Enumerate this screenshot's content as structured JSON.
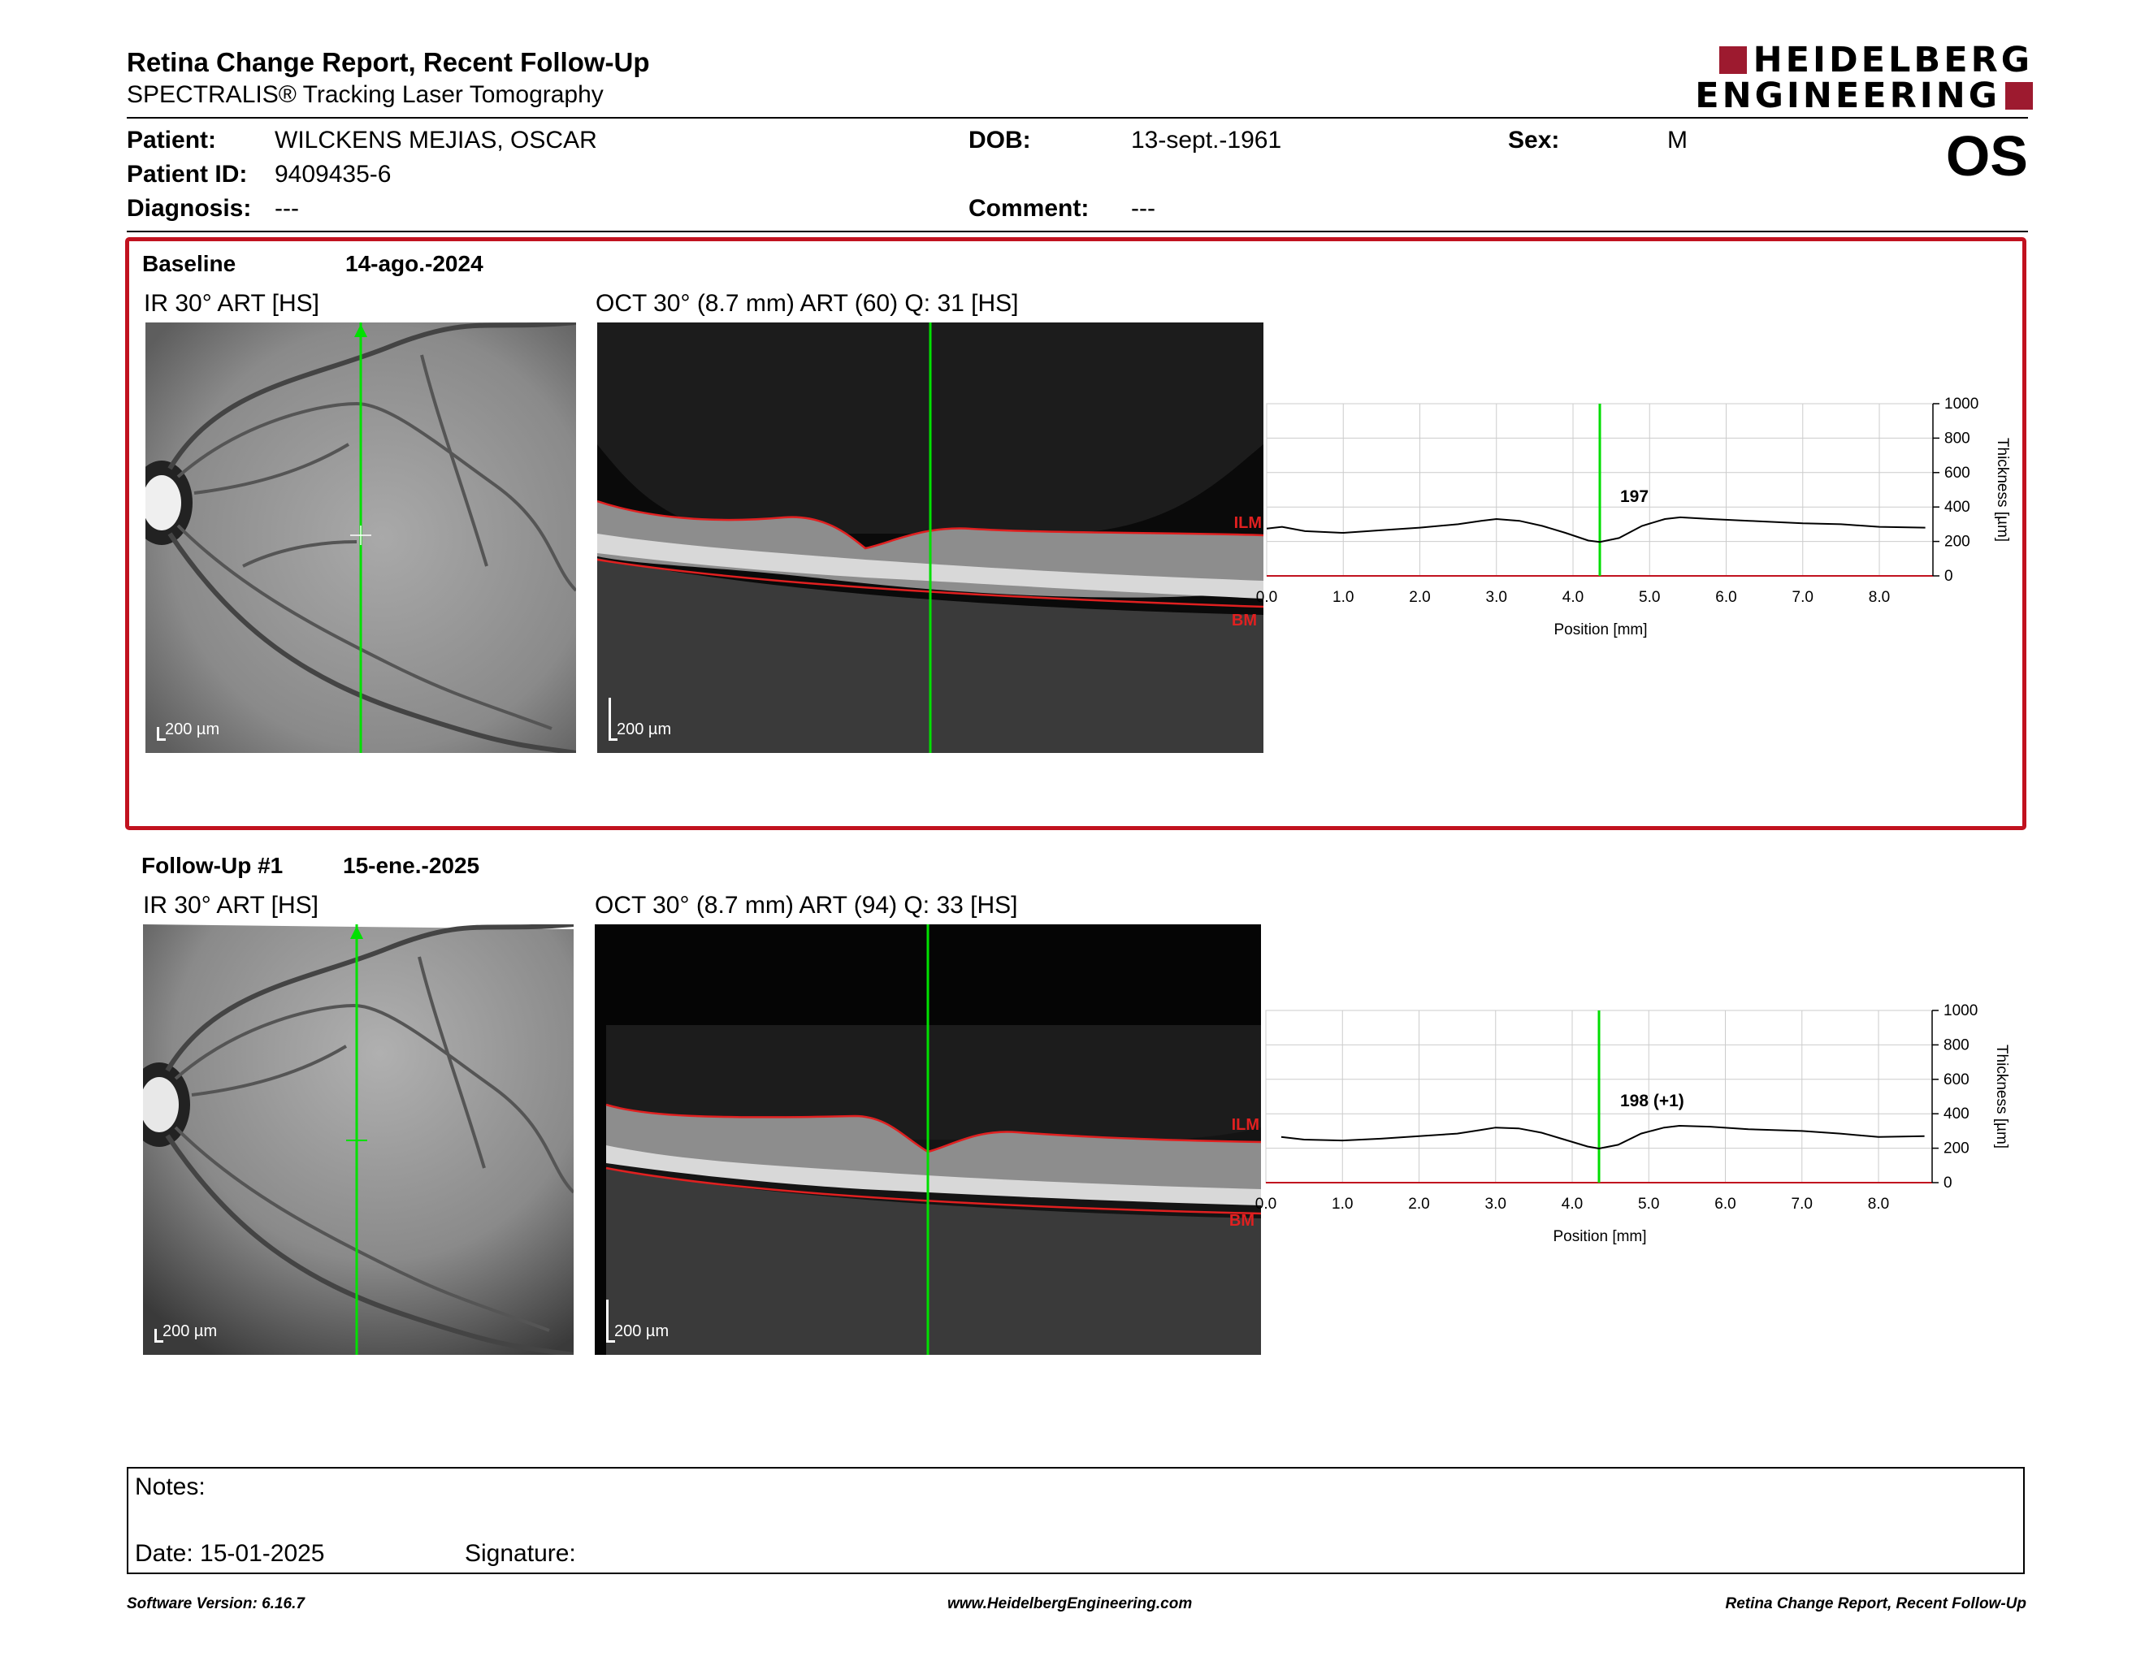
{
  "header": {
    "title": "Retina Change Report, Recent Follow-Up",
    "subtitle": "SPECTRALIS® Tracking Laser Tomography",
    "logo_line1": "HEIDELBERG",
    "logo_line2": "ENGINEERING"
  },
  "patient": {
    "name_label": "Patient:",
    "name": "WILCKENS MEJIAS, OSCAR",
    "id_label": "Patient ID:",
    "id": "9409435-6",
    "diagnosis_label": "Diagnosis:",
    "diagnosis": "---",
    "dob_label": "DOB:",
    "dob": "13-sept.-1961",
    "comment_label": "Comment:",
    "comment": "---",
    "sex_label": "Sex:",
    "sex": "M",
    "eye": "OS"
  },
  "exams": [
    {
      "label": "Baseline",
      "date": "14-ago.-2024",
      "ir_caption": "IR 30° ART [HS]",
      "oct_caption": "OCT 30° (8.7 mm) ART (60) Q: 31 [HS]",
      "scale": "200 µm",
      "ilm": "ILM",
      "bm": "BM",
      "thickness_label": "197"
    },
    {
      "label": "Follow-Up #1",
      "date": "15-ene.-2025",
      "ir_caption": "IR 30° ART [HS]",
      "oct_caption": "OCT 30° (8.7 mm) ART (94) Q: 33 [HS]",
      "scale": "200 µm",
      "ilm": "ILM",
      "bm": "BM",
      "thickness_label": "198 (+1)"
    }
  ],
  "chart_data": [
    {
      "type": "line",
      "xlabel": "Position [mm]",
      "ylabel": "Thickness [µm]",
      "xlim": [
        0,
        8.7
      ],
      "ylim": [
        0,
        1000
      ],
      "xticks": [
        "0.0",
        "1.0",
        "2.0",
        "3.0",
        "4.0",
        "5.0",
        "6.0",
        "7.0",
        "8.0"
      ],
      "yticks": [
        "0",
        "200",
        "400",
        "600",
        "800",
        "1000"
      ],
      "marker_x": 4.35,
      "marker_label": "197",
      "grid": true,
      "colors": {
        "line": "#000000",
        "marker": "#00dd00",
        "grid": "#cccccc",
        "baseline": "#c1121f"
      },
      "series": [
        {
          "x": [
            0.0,
            0.2,
            0.5,
            1.0,
            1.5,
            2.0,
            2.5,
            2.8,
            3.0,
            3.3,
            3.6,
            3.9,
            4.2,
            4.35,
            4.6,
            4.9,
            5.2,
            5.4,
            5.8,
            6.3,
            7.0,
            7.5,
            8.0,
            8.6
          ],
          "y": [
            275,
            285,
            260,
            250,
            265,
            280,
            300,
            320,
            330,
            320,
            290,
            250,
            205,
            197,
            220,
            290,
            330,
            340,
            330,
            320,
            305,
            300,
            285,
            280
          ]
        }
      ]
    },
    {
      "type": "line",
      "xlabel": "Position [mm]",
      "ylabel": "Thickness [µm]",
      "xlim": [
        0,
        8.7
      ],
      "ylim": [
        0,
        1000
      ],
      "xticks": [
        "0.0",
        "1.0",
        "2.0",
        "3.0",
        "4.0",
        "5.0",
        "6.0",
        "7.0",
        "8.0"
      ],
      "yticks": [
        "0",
        "200",
        "400",
        "600",
        "800",
        "1000"
      ],
      "marker_x": 4.35,
      "marker_label": "198 (+1)",
      "grid": true,
      "colors": {
        "line": "#000000",
        "marker": "#00dd00",
        "grid": "#cccccc",
        "baseline": "#c1121f",
        "baseline_series": "#2e8b57"
      },
      "series": [
        {
          "x": [
            0.2,
            0.5,
            1.0,
            1.5,
            2.0,
            2.5,
            2.8,
            3.0,
            3.3,
            3.6,
            3.9,
            4.2,
            4.35,
            4.6,
            4.9,
            5.2,
            5.4,
            5.8,
            6.3,
            7.0,
            7.5,
            8.0,
            8.6
          ],
          "y": [
            265,
            250,
            245,
            255,
            270,
            285,
            305,
            320,
            315,
            290,
            250,
            210,
            198,
            220,
            285,
            320,
            330,
            325,
            310,
            300,
            285,
            265,
            270
          ]
        }
      ]
    }
  ],
  "notes": {
    "notes_label": "Notes:",
    "date_label": "Date: 15-01-2025",
    "signature_label": "Signature:"
  },
  "footer": {
    "left": "Software Version: 6.16.7",
    "center": "www.HeidelbergEngineering.com",
    "right": "Retina Change Report, Recent Follow-Up"
  }
}
